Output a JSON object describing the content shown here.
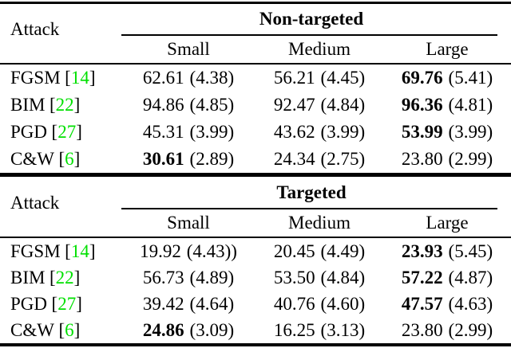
{
  "colors": {
    "citation_link": "#00e000",
    "text": "#000000",
    "background": "#ffffff",
    "rule": "#000000"
  },
  "punct": {
    "bracket_open": "[",
    "bracket_close": "]"
  },
  "tables": [
    {
      "group_header": "Non-targeted",
      "attack_header": "Attack",
      "columns": [
        "Small",
        "Medium",
        "Large"
      ],
      "rows": [
        {
          "attack": "FGSM",
          "cite": "14",
          "cells": [
            {
              "value": "62.61",
              "paren": "(4.38)",
              "bold": false
            },
            {
              "value": "56.21",
              "paren": "(4.45)",
              "bold": false
            },
            {
              "value": "69.76",
              "paren": "(5.41)",
              "bold": true
            }
          ]
        },
        {
          "attack": "BIM",
          "cite": "22",
          "cells": [
            {
              "value": "94.86",
              "paren": "(4.85)",
              "bold": false
            },
            {
              "value": "92.47",
              "paren": "(4.84)",
              "bold": false
            },
            {
              "value": "96.36",
              "paren": "(4.81)",
              "bold": true
            }
          ]
        },
        {
          "attack": "PGD",
          "cite": "27",
          "cells": [
            {
              "value": "45.31",
              "paren": "(3.99)",
              "bold": false
            },
            {
              "value": "43.62",
              "paren": "(3.99)",
              "bold": false
            },
            {
              "value": "53.99",
              "paren": "(3.99)",
              "bold": true
            }
          ]
        },
        {
          "attack": "C&W",
          "cite": "6",
          "cells": [
            {
              "value": "30.61",
              "paren": "(2.89)",
              "bold": true
            },
            {
              "value": "24.34",
              "paren": "(2.75)",
              "bold": false
            },
            {
              "value": "23.80",
              "paren": "(2.99)",
              "bold": false
            }
          ]
        }
      ]
    },
    {
      "group_header": "Targeted",
      "attack_header": "Attack",
      "columns": [
        "Small",
        "Medium",
        "Large"
      ],
      "rows": [
        {
          "attack": "FGSM",
          "cite": "14",
          "cells": [
            {
              "value": "19.92",
              "paren": "(4.43))",
              "bold": false
            },
            {
              "value": "20.45",
              "paren": "(4.49)",
              "bold": false
            },
            {
              "value": "23.93",
              "paren": "(5.45)",
              "bold": true
            }
          ]
        },
        {
          "attack": "BIM",
          "cite": "22",
          "cells": [
            {
              "value": "56.73",
              "paren": "(4.89)",
              "bold": false
            },
            {
              "value": "53.50",
              "paren": "(4.84)",
              "bold": false
            },
            {
              "value": "57.22",
              "paren": "(4.87)",
              "bold": true
            }
          ]
        },
        {
          "attack": "PGD",
          "cite": "27",
          "cells": [
            {
              "value": "39.42",
              "paren": "(4.64)",
              "bold": false
            },
            {
              "value": "40.76",
              "paren": "(4.60)",
              "bold": false
            },
            {
              "value": "47.57",
              "paren": "(4.63)",
              "bold": true
            }
          ]
        },
        {
          "attack": "C&W",
          "cite": "6",
          "cells": [
            {
              "value": "24.86",
              "paren": "(3.09)",
              "bold": true
            },
            {
              "value": "16.25",
              "paren": "(3.13)",
              "bold": false
            },
            {
              "value": "23.80",
              "paren": "(2.99)",
              "bold": false
            }
          ]
        }
      ]
    }
  ]
}
